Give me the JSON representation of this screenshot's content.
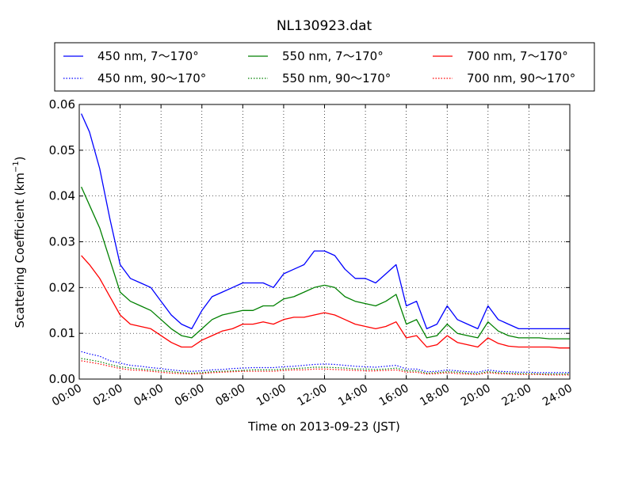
{
  "chart_data": {
    "type": "line",
    "title": "NL130923.dat",
    "xlabel": "Time on 2013-09-23 (JST)",
    "ylabel": "Scattering Coefficient (km",
    "ylabel_sup": "−1",
    "ylabel_end": ")",
    "xlim_hours": [
      0,
      24
    ],
    "ylim": [
      0,
      0.06
    ],
    "x_ticks": [
      {
        "hour": 0,
        "label": "00:00"
      },
      {
        "hour": 2,
        "label": "02:00"
      },
      {
        "hour": 4,
        "label": "04:00"
      },
      {
        "hour": 6,
        "label": "06:00"
      },
      {
        "hour": 8,
        "label": "08:00"
      },
      {
        "hour": 10,
        "label": "10:00"
      },
      {
        "hour": 12,
        "label": "12:00"
      },
      {
        "hour": 14,
        "label": "14:00"
      },
      {
        "hour": 16,
        "label": "16:00"
      },
      {
        "hour": 18,
        "label": "18:00"
      },
      {
        "hour": 20,
        "label": "20:00"
      },
      {
        "hour": 22,
        "label": "22:00"
      },
      {
        "hour": 24,
        "label": "24:00"
      }
    ],
    "y_ticks": [
      {
        "value": 0,
        "label": "0.00"
      },
      {
        "value": 0.01,
        "label": "0.01"
      },
      {
        "value": 0.02,
        "label": "0.02"
      },
      {
        "value": 0.03,
        "label": "0.03"
      },
      {
        "value": 0.04,
        "label": "0.04"
      },
      {
        "value": 0.05,
        "label": "0.05"
      },
      {
        "value": 0.06,
        "label": "0.06"
      }
    ],
    "grid": true,
    "grid_style": "dotted",
    "legend_placement": "top",
    "legend_columns": 3,
    "x": [
      0.1,
      0.5,
      1,
      1.5,
      2,
      2.5,
      3,
      3.5,
      4,
      4.5,
      5,
      5.5,
      6,
      6.5,
      7,
      7.5,
      8,
      8.5,
      9,
      9.5,
      10,
      10.5,
      11,
      11.5,
      12,
      12.5,
      13,
      13.5,
      14,
      14.5,
      15,
      15.5,
      16,
      16.5,
      17,
      17.5,
      18,
      18.5,
      19,
      19.5,
      20,
      20.5,
      21,
      21.5,
      22,
      22.5,
      23,
      23.5,
      24
    ],
    "series": [
      {
        "name": "450 nm, 7～170°",
        "color": "#0000ff",
        "style": "solid",
        "values": [
          0.058,
          0.054,
          0.046,
          0.035,
          0.025,
          0.022,
          0.021,
          0.02,
          0.017,
          0.014,
          0.012,
          0.011,
          0.015,
          0.018,
          0.019,
          0.02,
          0.021,
          0.021,
          0.021,
          0.02,
          0.023,
          0.024,
          0.025,
          0.028,
          0.028,
          0.027,
          0.024,
          0.022,
          0.022,
          0.021,
          0.023,
          0.025,
          0.016,
          0.017,
          0.011,
          0.012,
          0.016,
          0.013,
          0.012,
          0.011,
          0.016,
          0.013,
          0.012,
          0.011,
          0.011,
          0.011,
          0.011,
          0.011,
          0.011
        ]
      },
      {
        "name": "450 nm, 90～170°",
        "color": "#0000ff",
        "style": "dotted",
        "values": [
          0.006,
          0.0055,
          0.005,
          0.004,
          0.0035,
          0.003,
          0.0028,
          0.0025,
          0.0023,
          0.002,
          0.0018,
          0.0017,
          0.0018,
          0.002,
          0.0021,
          0.0023,
          0.0024,
          0.0025,
          0.0025,
          0.0025,
          0.0027,
          0.0028,
          0.003,
          0.0032,
          0.0033,
          0.0032,
          0.003,
          0.0028,
          0.0027,
          0.0026,
          0.0028,
          0.003,
          0.0022,
          0.0022,
          0.0016,
          0.0017,
          0.002,
          0.0018,
          0.0016,
          0.0015,
          0.002,
          0.0017,
          0.0016,
          0.0015,
          0.0015,
          0.0014,
          0.0014,
          0.0014,
          0.0014
        ]
      },
      {
        "name": "550 nm, 7～170°",
        "color": "#008000",
        "style": "solid",
        "values": [
          0.042,
          0.038,
          0.033,
          0.026,
          0.019,
          0.017,
          0.016,
          0.015,
          0.013,
          0.011,
          0.0095,
          0.009,
          0.011,
          0.013,
          0.014,
          0.0145,
          0.015,
          0.015,
          0.016,
          0.016,
          0.0175,
          0.018,
          0.019,
          0.02,
          0.0205,
          0.02,
          0.018,
          0.017,
          0.0165,
          0.016,
          0.017,
          0.0185,
          0.012,
          0.013,
          0.009,
          0.0095,
          0.012,
          0.01,
          0.0095,
          0.009,
          0.0125,
          0.0105,
          0.0095,
          0.009,
          0.009,
          0.009,
          0.0088,
          0.0088,
          0.0088
        ]
      },
      {
        "name": "550 nm, 90～170°",
        "color": "#008000",
        "style": "dotted",
        "values": [
          0.0045,
          0.0042,
          0.0038,
          0.0032,
          0.0027,
          0.0024,
          0.0022,
          0.002,
          0.0018,
          0.0016,
          0.0014,
          0.0013,
          0.0014,
          0.0016,
          0.0017,
          0.0018,
          0.0019,
          0.002,
          0.002,
          0.002,
          0.0022,
          0.0023,
          0.0024,
          0.0026,
          0.0026,
          0.0025,
          0.0024,
          0.0022,
          0.0022,
          0.0021,
          0.0022,
          0.0024,
          0.0018,
          0.0018,
          0.0013,
          0.0014,
          0.0016,
          0.0015,
          0.0013,
          0.0012,
          0.0016,
          0.0014,
          0.0013,
          0.0012,
          0.0012,
          0.0011,
          0.0011,
          0.0011,
          0.0011
        ]
      },
      {
        "name": "700 nm, 7～170°",
        "color": "#ff0000",
        "style": "solid",
        "values": [
          0.027,
          0.025,
          0.022,
          0.018,
          0.014,
          0.012,
          0.0115,
          0.011,
          0.0095,
          0.008,
          0.007,
          0.007,
          0.0085,
          0.0095,
          0.0105,
          0.011,
          0.012,
          0.012,
          0.0125,
          0.012,
          0.013,
          0.0135,
          0.0135,
          0.014,
          0.0145,
          0.014,
          0.013,
          0.012,
          0.0115,
          0.011,
          0.0115,
          0.0125,
          0.009,
          0.0095,
          0.007,
          0.0075,
          0.0095,
          0.008,
          0.0075,
          0.007,
          0.009,
          0.0078,
          0.0072,
          0.007,
          0.007,
          0.007,
          0.007,
          0.0068,
          0.0068
        ]
      },
      {
        "name": "700 nm, 90～170°",
        "color": "#ff0000",
        "style": "dotted",
        "values": [
          0.004,
          0.0037,
          0.0033,
          0.0028,
          0.0023,
          0.002,
          0.0019,
          0.0017,
          0.0015,
          0.0013,
          0.0012,
          0.0011,
          0.0012,
          0.0014,
          0.0015,
          0.0016,
          0.0017,
          0.0017,
          0.0017,
          0.0017,
          0.0019,
          0.002,
          0.002,
          0.0022,
          0.0022,
          0.0021,
          0.002,
          0.0019,
          0.0018,
          0.0018,
          0.0019,
          0.002,
          0.0015,
          0.0015,
          0.0011,
          0.0012,
          0.0014,
          0.0012,
          0.0011,
          0.001,
          0.0014,
          0.0012,
          0.0011,
          0.001,
          0.001,
          0.001,
          0.0009,
          0.0009,
          0.0009
        ]
      }
    ]
  }
}
